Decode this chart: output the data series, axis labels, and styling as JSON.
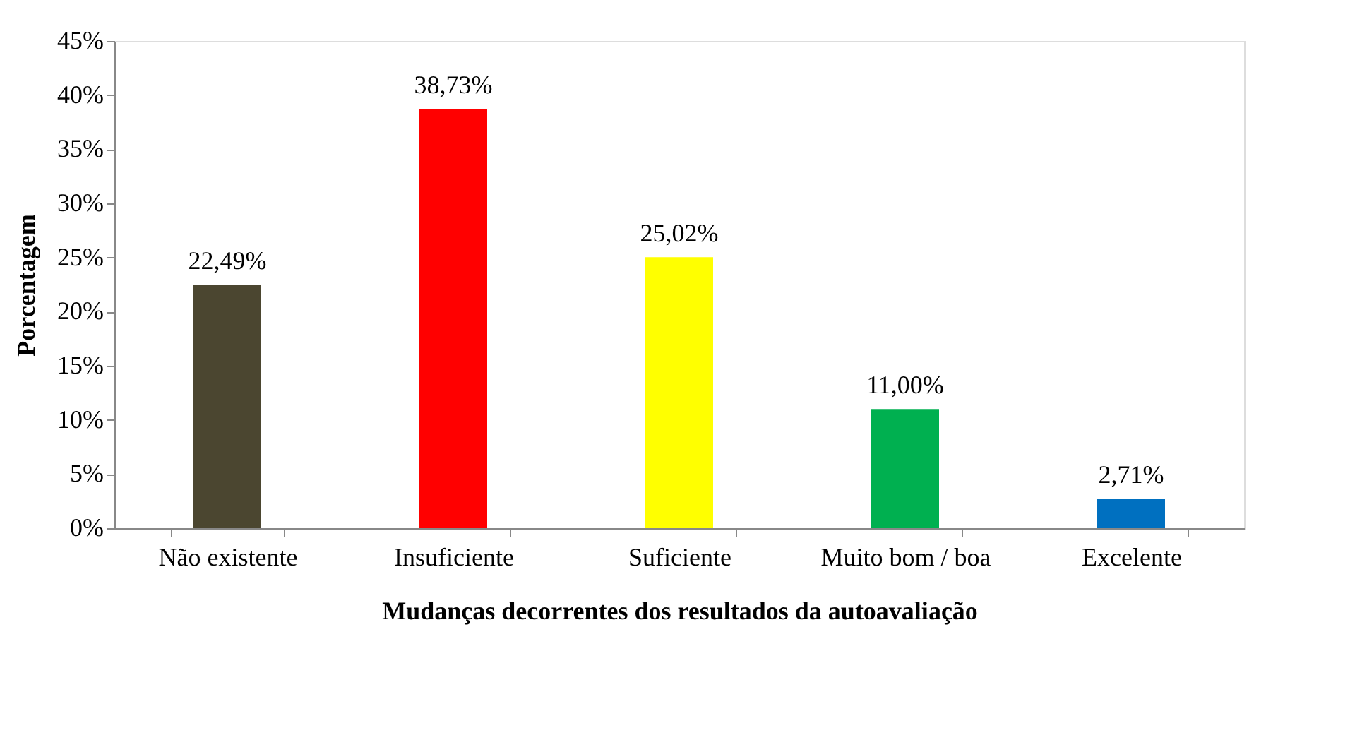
{
  "chart_data": {
    "type": "bar",
    "xlabel": "Mudanças decorrentes dos resultados da autoavaliação",
    "ylabel": "Porcentagem",
    "categories": [
      "Não existente",
      "Insuficiente",
      "Suficiente",
      "Muito bom / boa",
      "Excelente"
    ],
    "values": [
      22.49,
      38.73,
      25.02,
      11.0,
      2.71
    ],
    "colors": [
      "#4b4630",
      "#ff0000",
      "#ffff00",
      "#00b050",
      "#0070c0"
    ],
    "value_labels": [
      "22,49%",
      "38,73%",
      "25,02%",
      "11,00%",
      "2,71%"
    ],
    "ylim": [
      0,
      45
    ],
    "yticks": [
      {
        "value": 0,
        "label": "0%"
      },
      {
        "value": 5,
        "label": "5%"
      },
      {
        "value": 10,
        "label": "10%"
      },
      {
        "value": 15,
        "label": "15%"
      },
      {
        "value": 20,
        "label": "20%"
      },
      {
        "value": 25,
        "label": "25%"
      },
      {
        "value": 30,
        "label": "30%"
      },
      {
        "value": 35,
        "label": "35%"
      },
      {
        "value": 40,
        "label": "40%"
      },
      {
        "value": 45,
        "label": "45%"
      }
    ],
    "grid": false,
    "legend": false
  }
}
